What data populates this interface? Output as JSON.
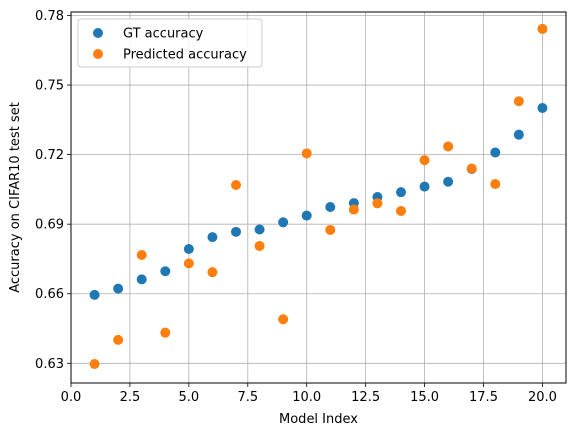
{
  "chart_data": {
    "type": "scatter",
    "xlabel": "Model Index",
    "ylabel": "Accuracy on CIFAR10 test set",
    "xlim": [
      0,
      21
    ],
    "ylim": [
      0.6215,
      0.7815
    ],
    "xticks": [
      0.0,
      2.5,
      5.0,
      7.5,
      10.0,
      12.5,
      15.0,
      17.5,
      20.0
    ],
    "xtick_labels": [
      "0.0",
      "2.5",
      "5.0",
      "7.5",
      "10.0",
      "12.5",
      "15.0",
      "17.5",
      "20.0"
    ],
    "yticks": [
      0.63,
      0.66,
      0.69,
      0.72,
      0.75,
      0.78
    ],
    "ytick_labels": [
      "0.63",
      "0.66",
      "0.69",
      "0.72",
      "0.75",
      "0.78"
    ],
    "grid": true,
    "legend_position": "top-left",
    "series": [
      {
        "name": "GT accuracy",
        "color": "#1f77b4",
        "x": [
          1,
          2,
          3,
          4,
          5,
          6,
          7,
          8,
          9,
          10,
          11,
          12,
          13,
          14,
          15,
          16,
          17,
          18,
          19,
          20
        ],
        "y": [
          0.6595,
          0.6622,
          0.6662,
          0.6697,
          0.6793,
          0.6844,
          0.6867,
          0.6877,
          0.6908,
          0.6937,
          0.6974,
          0.6991,
          0.7017,
          0.7038,
          0.7062,
          0.7083,
          0.7138,
          0.7209,
          0.7286,
          0.7401
        ]
      },
      {
        "name": "Predicted accuracy",
        "color": "#ff7f0e",
        "x": [
          1,
          2,
          3,
          4,
          5,
          6,
          7,
          8,
          9,
          10,
          11,
          12,
          13,
          14,
          15,
          16,
          17,
          18,
          19,
          20
        ],
        "y": [
          0.6297,
          0.6401,
          0.6767,
          0.6432,
          0.6731,
          0.6693,
          0.7069,
          0.6806,
          0.649,
          0.7205,
          0.6875,
          0.6963,
          0.699,
          0.6957,
          0.7176,
          0.7235,
          0.714,
          0.7073,
          0.743,
          0.7742
        ]
      }
    ]
  }
}
